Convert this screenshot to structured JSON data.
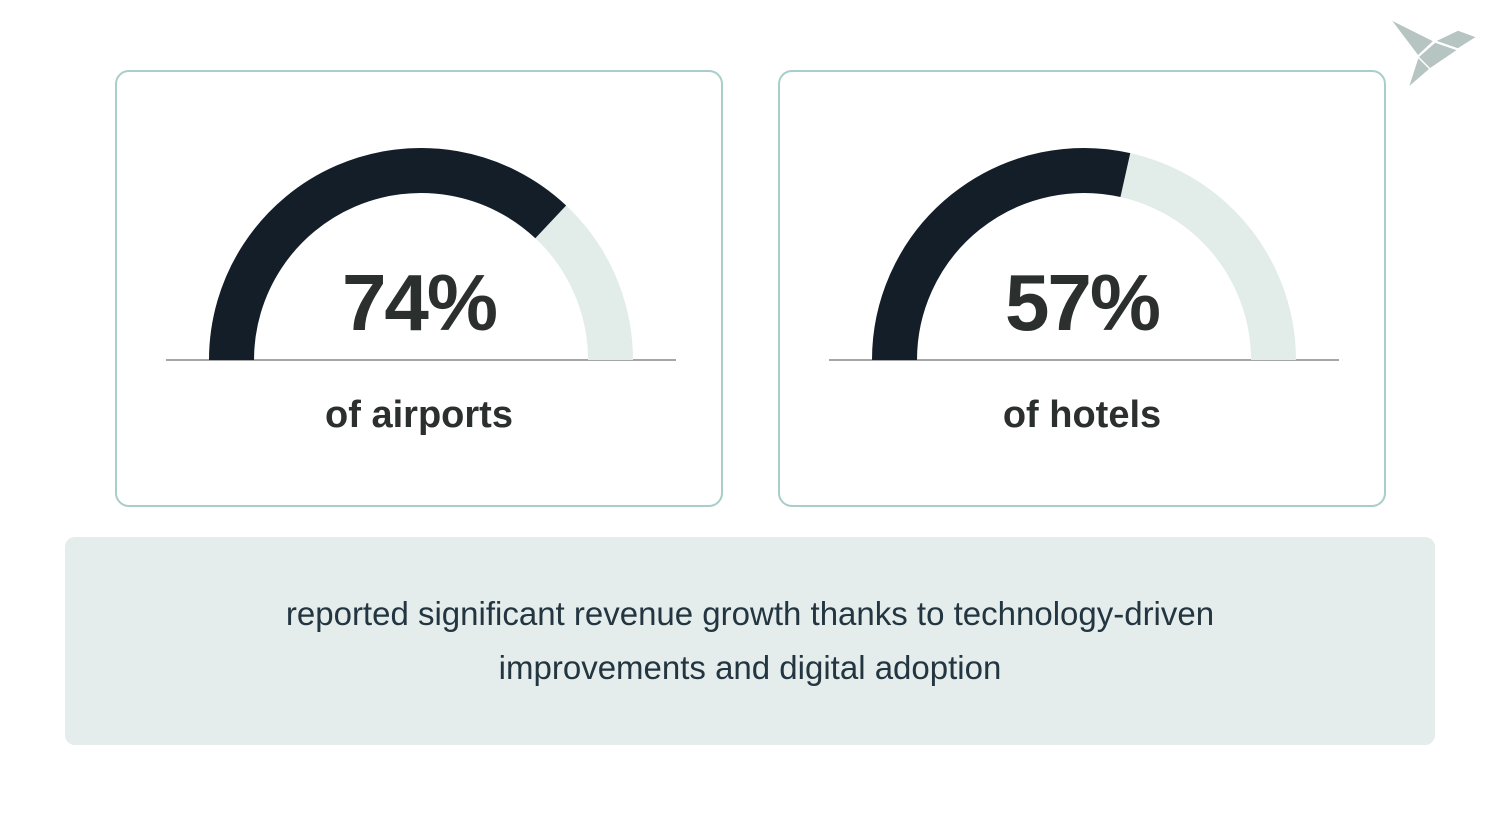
{
  "logo": {
    "name": "origami-bird-logo",
    "color": "#b6c4c2"
  },
  "cards": [
    {
      "percent_label": "74%",
      "caption": "of airports"
    },
    {
      "percent_label": "57%",
      "caption": "of hotels"
    }
  ],
  "summary": {
    "line1": "reported significant revenue growth thanks to technology-driven",
    "line2": "improvements and digital adoption"
  },
  "colors": {
    "accent_dark": "#141e28",
    "track_light": "#e2edea",
    "card_border": "#a9cdc9",
    "baseline_gray": "#a6a6a6",
    "number_text": "#2b2f2e",
    "summary_bg": "#e4edeb",
    "summary_text": "#223540",
    "logo": "#b6c4c2",
    "page_bg": "#ffffff"
  },
  "chart_data": [
    {
      "type": "gauge",
      "title": "of airports",
      "value": 74,
      "max": 100,
      "unit": "%",
      "span_degrees": 180,
      "fill_color": "#141e28",
      "track_color": "#e2edea",
      "center_label": "74%"
    },
    {
      "type": "gauge",
      "title": "of hotels",
      "value": 57,
      "max": 100,
      "unit": "%",
      "span_degrees": 180,
      "fill_color": "#141e28",
      "track_color": "#e2edea",
      "center_label": "57%"
    }
  ]
}
